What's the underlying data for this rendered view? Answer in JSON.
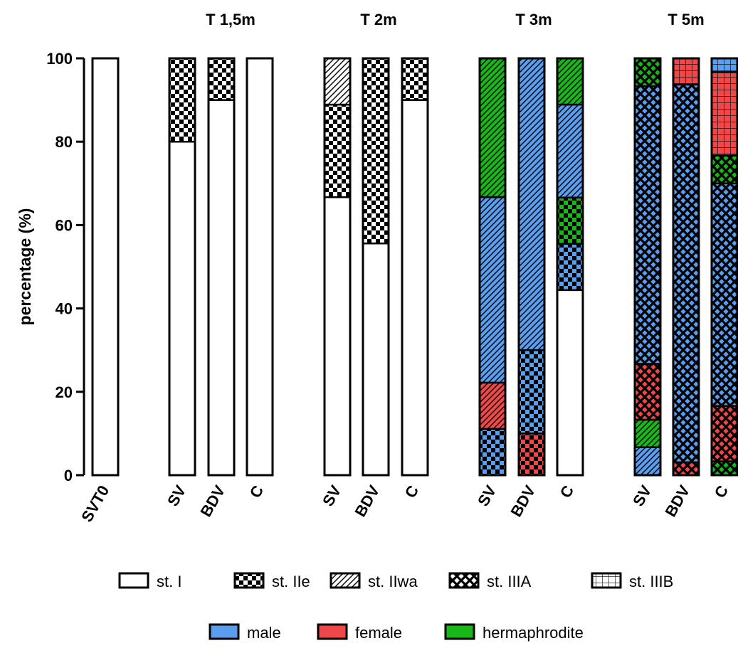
{
  "chart_data": {
    "type": "bar",
    "stacked": true,
    "ylabel": "percentage (%)",
    "ylim": [
      0,
      100
    ],
    "yticks": [
      "0",
      "20",
      "40",
      "60",
      "80",
      "100"
    ],
    "grid": false,
    "legend_placement": "bottom",
    "groups": [
      {
        "title": "",
        "bars": [
          "SVT0"
        ]
      },
      {
        "title": "T 1,5m",
        "bars": [
          "SV",
          "BDV",
          "C"
        ]
      },
      {
        "title": "T 2m",
        "bars": [
          "SV",
          "BDV",
          "C"
        ]
      },
      {
        "title": "T 3m",
        "bars": [
          "SV",
          "BDV",
          "C"
        ]
      },
      {
        "title": "T 5m",
        "bars": [
          "SV",
          "BDV",
          "C"
        ]
      }
    ],
    "categories": [
      "SVT0",
      "SV",
      "BDV",
      "C",
      "SV",
      "BDV",
      "C",
      "SV",
      "BDV",
      "C",
      "SV",
      "BDV",
      "C"
    ],
    "stage_legend": [
      {
        "key": "st1",
        "label": "st. I"
      },
      {
        "key": "st2e",
        "label": "st. IIe"
      },
      {
        "key": "st2wa",
        "label": "st. IIwa"
      },
      {
        "key": "st3a",
        "label": "st. IIIA"
      },
      {
        "key": "st3b",
        "label": "st. IIIB"
      }
    ],
    "sex_legend": [
      {
        "key": "male",
        "label": "male",
        "color": "#5a9ef0"
      },
      {
        "key": "female",
        "label": "female",
        "color": "#f04848"
      },
      {
        "key": "herm",
        "label": "hermaphrodite",
        "color": "#18b818"
      }
    ],
    "bars": [
      {
        "segments": [
          {
            "stage": "st1",
            "sex": "none",
            "value": 100
          }
        ]
      },
      {
        "segments": [
          {
            "stage": "st1",
            "sex": "none",
            "value": 80
          },
          {
            "stage": "st2e",
            "sex": "none",
            "value": 20
          }
        ]
      },
      {
        "segments": [
          {
            "stage": "st1",
            "sex": "none",
            "value": 90
          },
          {
            "stage": "st2e",
            "sex": "none",
            "value": 10
          }
        ]
      },
      {
        "segments": [
          {
            "stage": "st1",
            "sex": "none",
            "value": 100
          }
        ]
      },
      {
        "segments": [
          {
            "stage": "st1",
            "sex": "none",
            "value": 66.7
          },
          {
            "stage": "st2e",
            "sex": "none",
            "value": 22.2
          },
          {
            "stage": "st2wa",
            "sex": "none",
            "value": 11.1
          }
        ]
      },
      {
        "segments": [
          {
            "stage": "st1",
            "sex": "none",
            "value": 55.6
          },
          {
            "stage": "st2e",
            "sex": "none",
            "value": 44.4
          }
        ]
      },
      {
        "segments": [
          {
            "stage": "st1",
            "sex": "none",
            "value": 90
          },
          {
            "stage": "st2e",
            "sex": "none",
            "value": 10
          }
        ]
      },
      {
        "segments": [
          {
            "stage": "st2e",
            "sex": "male",
            "value": 11.1
          },
          {
            "stage": "st2wa",
            "sex": "female",
            "value": 11.1
          },
          {
            "stage": "st2wa",
            "sex": "male",
            "value": 44.5
          },
          {
            "stage": "st2wa",
            "sex": "herm",
            "value": 33.3
          }
        ]
      },
      {
        "segments": [
          {
            "stage": "st2e",
            "sex": "female",
            "value": 10
          },
          {
            "stage": "st2e",
            "sex": "male",
            "value": 20
          },
          {
            "stage": "st2wa",
            "sex": "male",
            "value": 70
          }
        ]
      },
      {
        "segments": [
          {
            "stage": "st1",
            "sex": "none",
            "value": 44.4
          },
          {
            "stage": "st2e",
            "sex": "male",
            "value": 11.1
          },
          {
            "stage": "st2e",
            "sex": "herm",
            "value": 11.1
          },
          {
            "stage": "st2wa",
            "sex": "male",
            "value": 22.3
          },
          {
            "stage": "st2wa",
            "sex": "herm",
            "value": 11.1
          }
        ]
      },
      {
        "segments": [
          {
            "stage": "st2wa",
            "sex": "male",
            "value": 6.7
          },
          {
            "stage": "st2wa",
            "sex": "herm",
            "value": 6.6
          },
          {
            "stage": "st3a",
            "sex": "female",
            "value": 13.4
          },
          {
            "stage": "st3a",
            "sex": "male",
            "value": 66.6
          },
          {
            "stage": "st3a",
            "sex": "herm",
            "value": 6.7
          }
        ]
      },
      {
        "segments": [
          {
            "stage": "st3a",
            "sex": "female",
            "value": 3.1
          },
          {
            "stage": "st3a",
            "sex": "male",
            "value": 90.6
          },
          {
            "stage": "st3b",
            "sex": "female",
            "value": 6.3
          }
        ]
      },
      {
        "segments": [
          {
            "stage": "st3a",
            "sex": "herm",
            "value": 3.3
          },
          {
            "stage": "st3a",
            "sex": "female",
            "value": 13.3
          },
          {
            "stage": "st3a",
            "sex": "male",
            "value": 53.4
          },
          {
            "stage": "st3a",
            "sex": "herm",
            "value": 6.7
          },
          {
            "stage": "st3b",
            "sex": "female",
            "value": 20
          },
          {
            "stage": "st3b",
            "sex": "male",
            "value": 3.3
          }
        ]
      }
    ]
  }
}
